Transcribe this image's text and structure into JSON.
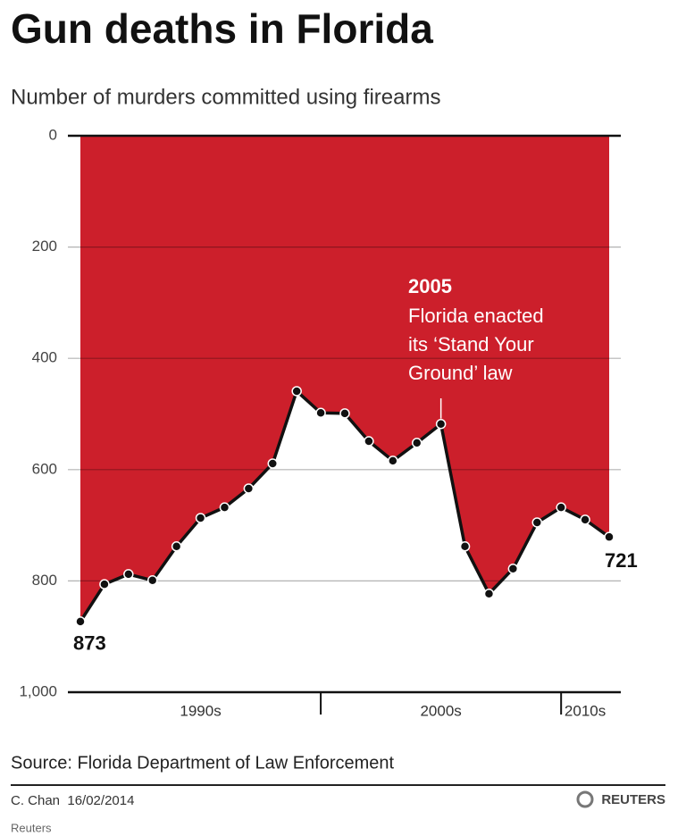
{
  "chart_data": {
    "type": "line",
    "title": "Gun deaths in Florida",
    "subtitle": "Number of murders committed using firearms",
    "x": [
      1990,
      1991,
      1992,
      1993,
      1994,
      1995,
      1996,
      1997,
      1998,
      1999,
      2000,
      2001,
      2002,
      2003,
      2004,
      2005,
      2006,
      2007,
      2008,
      2009,
      2010,
      2011,
      2012
    ],
    "values": [
      873,
      806,
      788,
      799,
      738,
      687,
      668,
      634,
      589,
      459,
      498,
      499,
      549,
      584,
      552,
      518,
      738,
      823,
      778,
      695,
      668,
      690,
      721
    ],
    "value_labels": [
      "873",
      null,
      null,
      null,
      null,
      null,
      null,
      null,
      null,
      null,
      null,
      null,
      null,
      null,
      null,
      null,
      null,
      null,
      null,
      null,
      null,
      null,
      "721"
    ],
    "xlim": [
      1990,
      2012
    ],
    "decades": [
      {
        "label": "1990s",
        "start": 1990,
        "end": 2000
      },
      {
        "label": "2000s",
        "start": 2000,
        "end": 2010
      },
      {
        "label": "2010s",
        "start": 2010,
        "end": 2012
      }
    ],
    "ylim": [
      0,
      1000
    ],
    "inverted": true,
    "yticks": [
      0,
      200,
      400,
      600,
      800,
      {
        "value": 1000,
        "label": "1,000"
      }
    ],
    "grid": true,
    "area_color": "#cc1f2b",
    "line_color": "#111111",
    "annotation": {
      "x": 2005,
      "title": "2005",
      "lines": [
        "Florida enacted",
        "its ‘Stand Your",
        "Ground’ law"
      ]
    },
    "source": "Source: Florida Department of Law Enforcement",
    "credit": "C. Chan  16/02/2014",
    "brand": "REUTERS",
    "footer": "Reuters"
  }
}
